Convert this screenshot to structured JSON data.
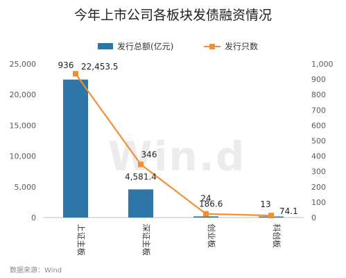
{
  "chart_data": {
    "type": "bar",
    "title": "今年上市公司各板块发债融资情况",
    "categories": [
      "上证主板",
      "深证主板",
      "创业板",
      "科创板"
    ],
    "series": [
      {
        "name": "发行总额(亿元)",
        "kind": "bar",
        "axis": "left",
        "color": "#2e75a8",
        "values": [
          22453.5,
          4581.4,
          186.6,
          74.1
        ],
        "labels": [
          "22,453.5",
          "4,581.4",
          "186.6",
          "74.1"
        ]
      },
      {
        "name": "发行只数",
        "kind": "line",
        "axis": "right",
        "color": "#f0902e",
        "values": [
          936,
          346,
          24,
          13
        ],
        "labels": [
          "936",
          "346",
          "24",
          "13"
        ]
      }
    ],
    "left_axis": {
      "min": 0,
      "max": 25000,
      "ticks": [
        "0",
        "5,000",
        "10,000",
        "15,000",
        "20,000",
        "25,000"
      ]
    },
    "right_axis": {
      "min": 0,
      "max": 1000,
      "ticks": [
        "0",
        "100",
        "200",
        "300",
        "400",
        "500",
        "600",
        "700",
        "800",
        "900",
        "1,000"
      ]
    },
    "grid": false,
    "legend_position": "top-center"
  },
  "source_text": "数据来源：Wind",
  "watermark_text": "Win.d"
}
